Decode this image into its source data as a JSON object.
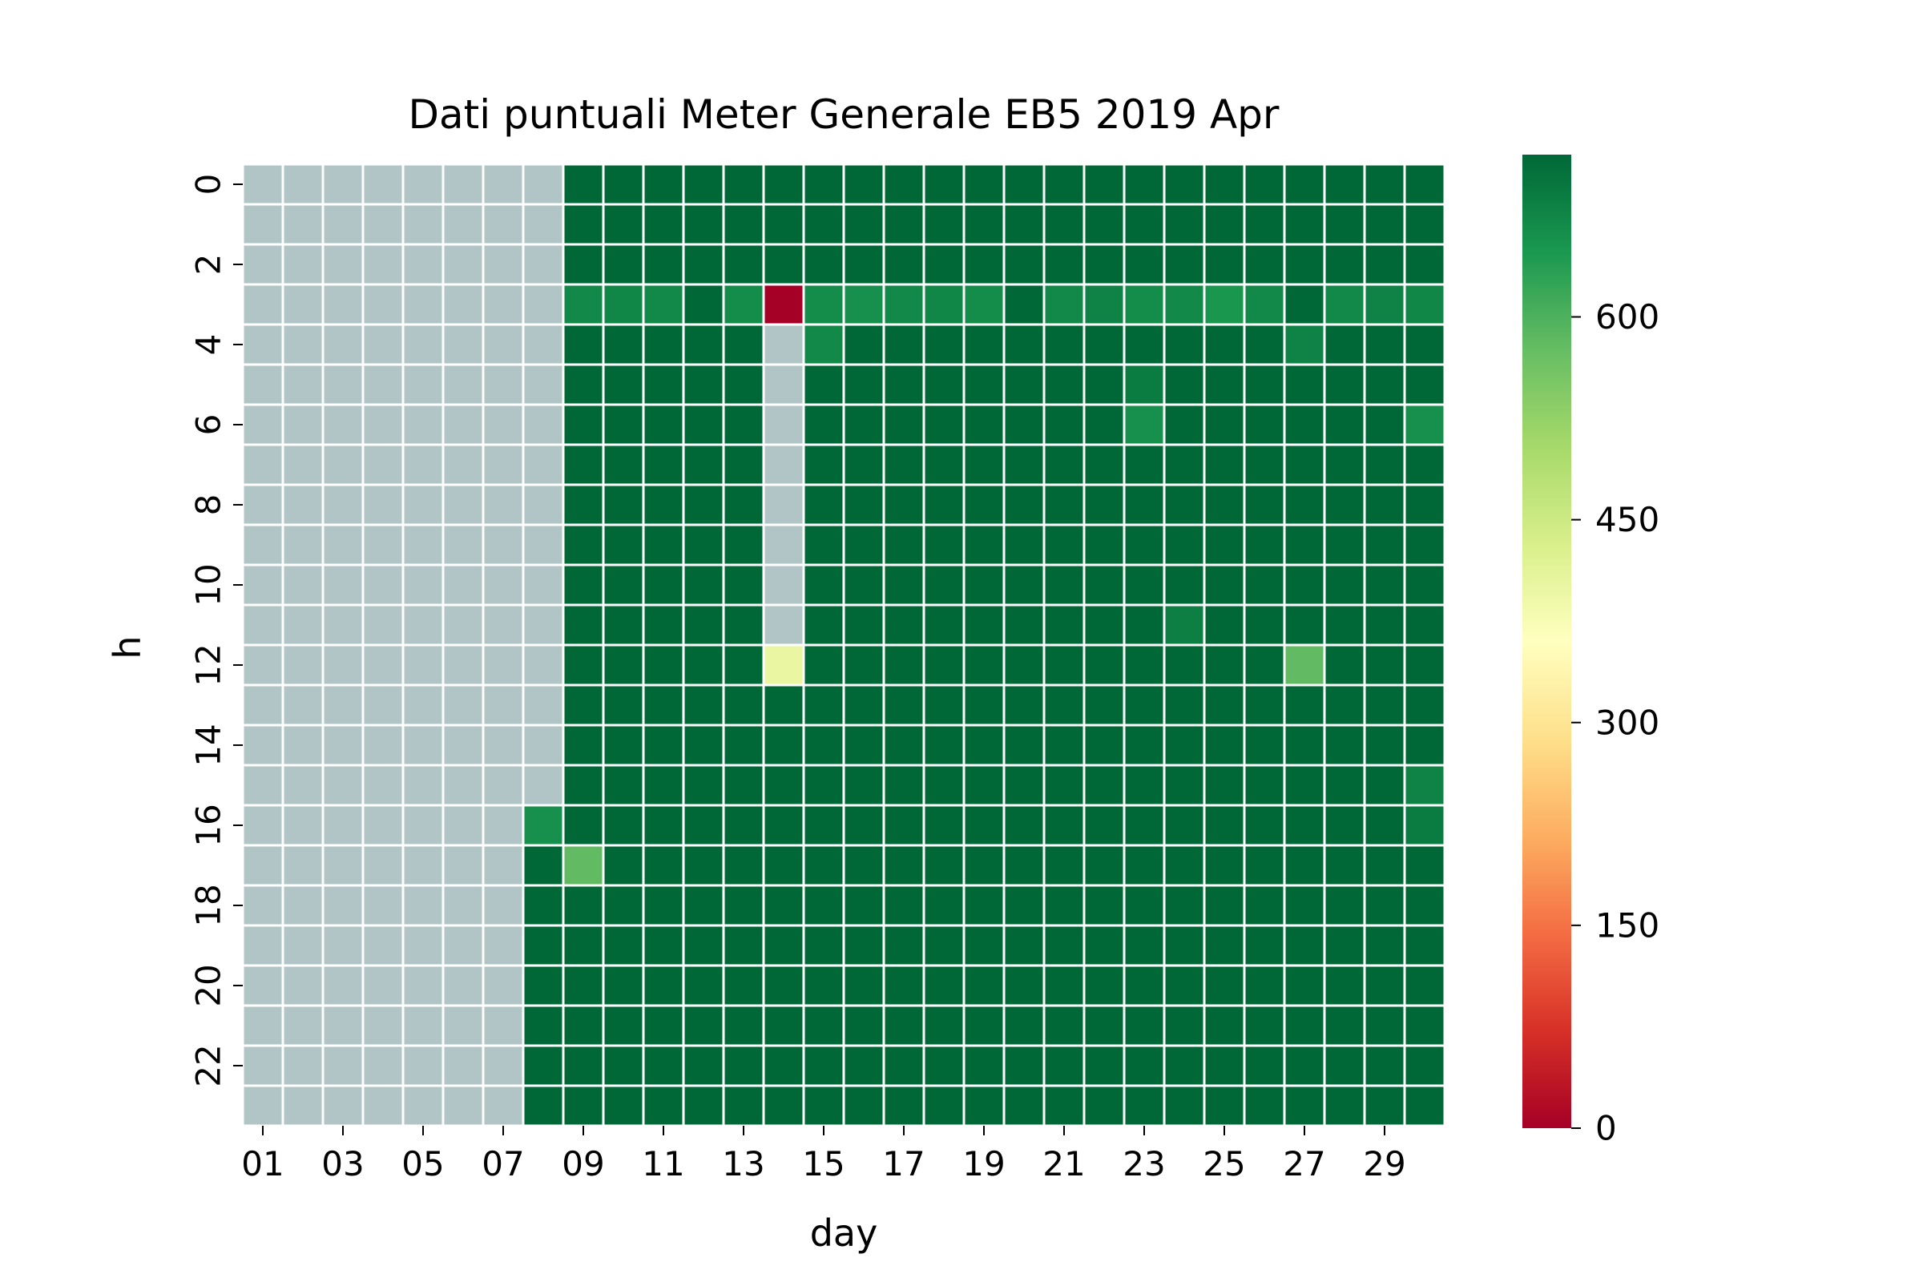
{
  "chart_data": {
    "type": "heatmap",
    "title": "Dati puntuali Meter Generale EB5 2019 Apr",
    "xlabel": "day",
    "ylabel": "h",
    "x_categories": [
      "01",
      "02",
      "03",
      "04",
      "05",
      "06",
      "07",
      "08",
      "09",
      "10",
      "11",
      "12",
      "13",
      "14",
      "15",
      "16",
      "17",
      "18",
      "19",
      "20",
      "21",
      "22",
      "23",
      "24",
      "25",
      "26",
      "27",
      "28",
      "29",
      "30"
    ],
    "y_categories": [
      0,
      1,
      2,
      3,
      4,
      5,
      6,
      7,
      8,
      9,
      10,
      11,
      12,
      13,
      14,
      15,
      16,
      17,
      18,
      19,
      20,
      21,
      22,
      23
    ],
    "x_tick_labels": [
      "01",
      "03",
      "05",
      "07",
      "09",
      "11",
      "13",
      "15",
      "17",
      "19",
      "21",
      "23",
      "25",
      "27",
      "29"
    ],
    "y_tick_labels": [
      "0",
      "2",
      "4",
      "6",
      "8",
      "10",
      "12",
      "14",
      "16",
      "18",
      "20",
      "22"
    ],
    "colorbar": {
      "ticks": [
        0,
        150,
        300,
        450,
        600
      ],
      "tick_labels": [
        "0",
        "150",
        "300",
        "450",
        "600"
      ],
      "vmin": 0,
      "vmax": 720,
      "colormap": "RdYlGn",
      "stops": [
        {
          "v": 0.0,
          "c": "#a50026"
        },
        {
          "v": 0.1,
          "c": "#d73027"
        },
        {
          "v": 0.2,
          "c": "#f46d43"
        },
        {
          "v": 0.3,
          "c": "#fdae61"
        },
        {
          "v": 0.4,
          "c": "#fee08b"
        },
        {
          "v": 0.5,
          "c": "#ffffbf"
        },
        {
          "v": 0.6,
          "c": "#d9ef8b"
        },
        {
          "v": 0.7,
          "c": "#a6d96a"
        },
        {
          "v": 0.8,
          "c": "#66bd63"
        },
        {
          "v": 0.9,
          "c": "#1a9850"
        },
        {
          "v": 1.0,
          "c": "#006837"
        }
      ]
    },
    "missing_color": "#b2c5c6",
    "grid_line_color": "#ffffff",
    "default_value": 720,
    "missing": {
      "full_days": [
        "01",
        "02",
        "03",
        "04",
        "05",
        "06",
        "07"
      ],
      "day08_hours": [
        0,
        1,
        2,
        3,
        4,
        5,
        6,
        7,
        8,
        9,
        10,
        11,
        12,
        13,
        14,
        15
      ],
      "day14_hours": [
        4,
        5,
        6,
        7,
        8,
        9,
        10,
        11
      ]
    },
    "special_values": [
      {
        "day": "08",
        "h": 16,
        "value": 660
      },
      {
        "day": "09",
        "h": 17,
        "value": 580
      },
      {
        "day": "09",
        "h": 3,
        "value": 670
      },
      {
        "day": "10",
        "h": 3,
        "value": 675
      },
      {
        "day": "11",
        "h": 3,
        "value": 670
      },
      {
        "day": "13",
        "h": 3,
        "value": 665
      },
      {
        "day": "14",
        "h": 3,
        "value": 0
      },
      {
        "day": "15",
        "h": 3,
        "value": 665
      },
      {
        "day": "16",
        "h": 3,
        "value": 660
      },
      {
        "day": "17",
        "h": 3,
        "value": 670
      },
      {
        "day": "18",
        "h": 3,
        "value": 675
      },
      {
        "day": "19",
        "h": 3,
        "value": 665
      },
      {
        "day": "21",
        "h": 3,
        "value": 670
      },
      {
        "day": "22",
        "h": 3,
        "value": 680
      },
      {
        "day": "23",
        "h": 3,
        "value": 665
      },
      {
        "day": "24",
        "h": 3,
        "value": 670
      },
      {
        "day": "25",
        "h": 3,
        "value": 650
      },
      {
        "day": "26",
        "h": 3,
        "value": 670
      },
      {
        "day": "28",
        "h": 3,
        "value": 670
      },
      {
        "day": "29",
        "h": 3,
        "value": 680
      },
      {
        "day": "30",
        "h": 3,
        "value": 675
      },
      {
        "day": "15",
        "h": 4,
        "value": 670
      },
      {
        "day": "27",
        "h": 4,
        "value": 680
      },
      {
        "day": "23",
        "h": 5,
        "value": 690
      },
      {
        "day": "23",
        "h": 6,
        "value": 660
      },
      {
        "day": "30",
        "h": 6,
        "value": 660
      },
      {
        "day": "24",
        "h": 11,
        "value": 685
      },
      {
        "day": "14",
        "h": 12,
        "value": 400
      },
      {
        "day": "27",
        "h": 12,
        "value": 580
      },
      {
        "day": "30",
        "h": 15,
        "value": 680
      },
      {
        "day": "30",
        "h": 16,
        "value": 690
      }
    ]
  }
}
